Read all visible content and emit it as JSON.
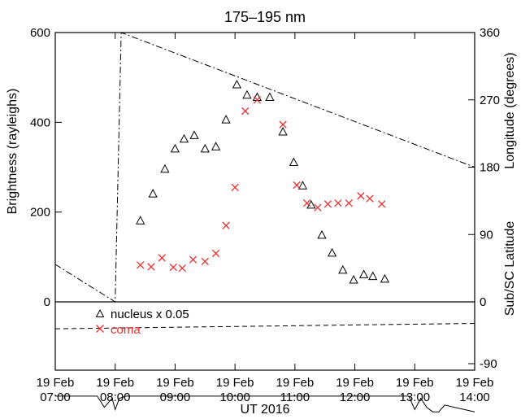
{
  "chart_data": {
    "type": "scatter",
    "title": "175–195 nm",
    "xlabel": "UT 2016",
    "ylabel_left": "Brightness (rayleighs)",
    "ylabel_right_upper": "Longitude (degrees)",
    "ylabel_right_lower": "Sub/SC  Latitude",
    "x_range_hours": [
      7.0,
      14.0
    ],
    "x_ticks": [
      {
        "hour": 7,
        "date": "19 Feb",
        "time": "07:00"
      },
      {
        "hour": 8,
        "date": "19 Feb",
        "time": "08:00"
      },
      {
        "hour": 9,
        "date": "19 Feb",
        "time": "09:00"
      },
      {
        "hour": 10,
        "date": "19 Feb",
        "time": "10:00"
      },
      {
        "hour": 11,
        "date": "19 Feb",
        "time": "11:00"
      },
      {
        "hour": 12,
        "date": "19 Feb",
        "time": "12:00"
      },
      {
        "hour": 13,
        "date": "19 Feb",
        "time": "13:00"
      },
      {
        "hour": 14,
        "date": "19 Feb",
        "time": "14:00"
      }
    ],
    "left_axis": {
      "ylim": [
        -260,
        600
      ],
      "ticks": [
        {
          "v": 600,
          "label": "600"
        },
        {
          "v": 400,
          "label": "400"
        },
        {
          "v": 200,
          "label": "200"
        },
        {
          "v": 0,
          "label": "0"
        }
      ]
    },
    "right_axis_longitude": {
      "ylim": [
        0,
        360
      ],
      "ticks": [
        {
          "v": 360,
          "label": "360"
        },
        {
          "v": 270,
          "label": "270"
        },
        {
          "v": 180,
          "label": "180"
        },
        {
          "v": 90,
          "label": "90"
        },
        {
          "v": 0,
          "label": "0"
        }
      ]
    },
    "right_axis_latitude": {
      "ticks": [
        {
          "v": -90,
          "label": "-90"
        }
      ]
    },
    "legend": {
      "placement": "lower-left",
      "entries": [
        {
          "symbol": "△",
          "label": "nucleus x 0.05",
          "color": "#000000"
        },
        {
          "symbol": "×",
          "label": "coma",
          "color": "#e8302f"
        }
      ]
    },
    "series": [
      {
        "name": "nucleus x 0.05",
        "marker": "triangle",
        "color": "#000000",
        "x": [
          8.42,
          8.63,
          8.83,
          9.0,
          9.15,
          9.32,
          9.5,
          9.68,
          9.85,
          10.03,
          10.2,
          10.37,
          10.58,
          10.8,
          10.98,
          11.13,
          11.27,
          11.45,
          11.62,
          11.8,
          11.98,
          12.15,
          12.3,
          12.5
        ],
        "y": [
          180,
          240,
          295,
          340,
          362,
          370,
          340,
          345,
          405,
          483,
          460,
          455,
          455,
          378,
          310,
          258,
          215,
          148,
          108,
          70,
          48,
          60,
          56,
          50
        ]
      },
      {
        "name": "coma",
        "marker": "x",
        "color": "#e8302f",
        "x": [
          8.42,
          8.6,
          8.78,
          8.97,
          9.12,
          9.3,
          9.5,
          9.68,
          9.85,
          10.0,
          10.17,
          10.37,
          10.8,
          11.03,
          11.2,
          11.38,
          11.55,
          11.72,
          11.9,
          12.1,
          12.25,
          12.45
        ],
        "y": [
          82,
          78,
          98,
          77,
          75,
          94,
          90,
          108,
          170,
          255,
          425,
          450,
          395,
          260,
          220,
          210,
          218,
          220,
          220,
          236,
          230,
          218
        ]
      }
    ],
    "longitude_curve": {
      "style": "dash-dot",
      "x": [
        7.0,
        8.0,
        8.1,
        14.0
      ],
      "y": [
        50,
        0,
        360,
        180
      ]
    },
    "latitude_dashed": {
      "style": "dashed",
      "x": [
        7.0,
        14.0
      ],
      "y": [
        -60,
        -48
      ]
    },
    "latitude_solid": {
      "style": "solid",
      "x": [
        7.0,
        7.7,
        7.82,
        7.95,
        8.0,
        8.07,
        8.18,
        12.9,
        13.0,
        13.1,
        13.2,
        13.3,
        13.4,
        13.5,
        14.0
      ],
      "y": [
        -210,
        -210,
        -235,
        -215,
        -240,
        -215,
        -210,
        -210,
        -240,
        -215,
        -235,
        -245,
        -245,
        -230,
        -245
      ]
    }
  }
}
